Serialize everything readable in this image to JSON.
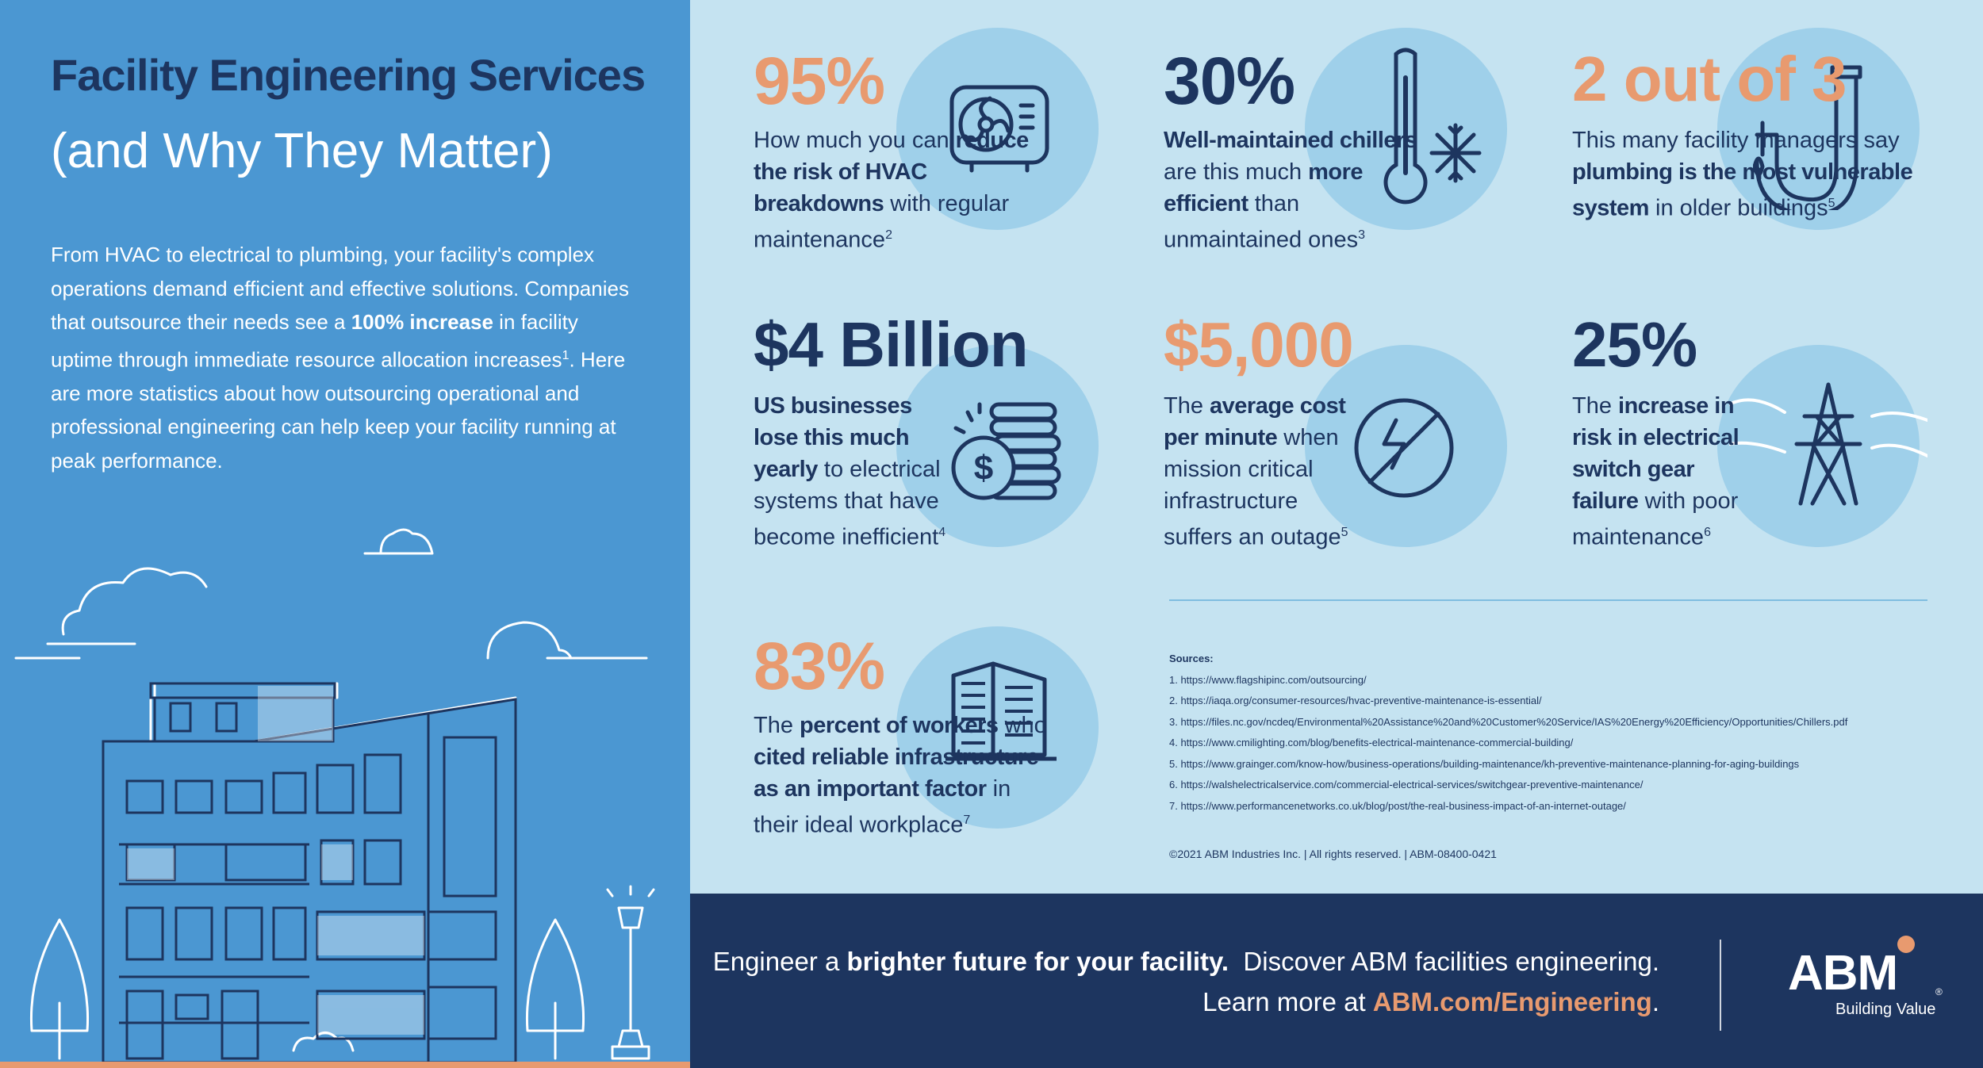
{
  "header": {
    "title_line1": "Facility Engineering Services",
    "title_line2": "(and Why They Matter)"
  },
  "intro": {
    "p1": "From HVAC to electrical to plumbing, your facility's complex operations demand efficient and effective solutions. Companies that outsource their needs see a ",
    "bold": "100% increase",
    "p2": " in facility uptime through immediate resource allocation increases",
    "sup": "1",
    "p3": ". Here are more statistics about how outsourcing operational and professional engineering can help keep your facility running at peak performance."
  },
  "stats": [
    {
      "value": "95%",
      "pre": "How much you can ",
      "bold": "reduce the risk of HVAC breakdowns",
      "post": " with regular maintenance",
      "sup": "2",
      "icon": "hvac-unit-icon"
    },
    {
      "value": "30%",
      "pre": "",
      "bold": "Well-maintained chillers",
      "mid": " are this much ",
      "bold2": "more efficient",
      "post": " than unmaintained ones",
      "sup": "3",
      "icon": "thermometer-snowflake-icon"
    },
    {
      "value": "2 out of 3",
      "pre": "This many facility managers say ",
      "bold": "plumbing is the most vulnerable system",
      "post": " in older buildings",
      "sup": "5",
      "icon": "pipe-icon"
    },
    {
      "value": "$4 Billion",
      "pre": "",
      "bold": "US businesses lose this much yearly",
      "post": " to electrical systems that have become inefficient",
      "sup": "4",
      "icon": "coins-icon"
    },
    {
      "value": "$5,000",
      "pre": "The ",
      "bold": "average cost per minute",
      "post": " when mission critical infrastructure suffers an outage",
      "sup": "5",
      "icon": "no-power-icon"
    },
    {
      "value": "25%",
      "pre": "The ",
      "bold": "increase in risk in electrical switch gear failure",
      "post": " with poor maintenance",
      "sup": "6",
      "icon": "power-tower-icon"
    },
    {
      "value": "83%",
      "pre": "The ",
      "bold": "percent of workers",
      "mid": " who ",
      "bold2": "cited reliable infrastructure as an important factor",
      "post": " in their ideal workplace",
      "sup": "7",
      "icon": "office-building-icon"
    }
  ],
  "sources": {
    "heading": "Sources:",
    "items": [
      "1.  https://www.flagshipinc.com/outsourcing/",
      "2.  https://iaqa.org/consumer-resources/hvac-preventive-maintenance-is-essential/",
      "3.  https://files.nc.gov/ncdeq/Environmental%20Assistance%20and%20Customer%20Service/IAS%20Energy%20Efficiency/Opportunities/Chillers.pdf",
      "4.  https://www.cmilighting.com/blog/benefits-electrical-maintenance-commercial-building/",
      "5.  https://www.grainger.com/know-how/business-operations/building-maintenance/kh-preventive-maintenance-planning-for-aging-buildings",
      "6.  https://walshelectricalservice.com/commercial-electrical-services/switchgear-preventive-maintenance/",
      "7.  https://www.performancenetworks.co.uk/blog/post/the-real-business-impact-of-an-internet-outage/"
    ],
    "copyright": "©2021 ABM Industries Inc. | All rights reserved. | ABM-08400-0421"
  },
  "footer": {
    "cta1_pre": "Engineer a ",
    "cta1_bold": "brighter future for your facility.",
    "cta1_post": "  Discover ABM facilities engineering.",
    "cta2_pre": "Learn more at ",
    "cta2_link": "ABM.com/Engineering",
    "cta2_post": ".",
    "logo": "ABM",
    "tagline": "Building Value",
    "reg": "®"
  },
  "colors": {
    "navy": "#1d355f",
    "orange": "#e89a6f",
    "sky": "#4b97d2",
    "pale": "#c5e3f1",
    "circle": "#9fd0ea"
  }
}
